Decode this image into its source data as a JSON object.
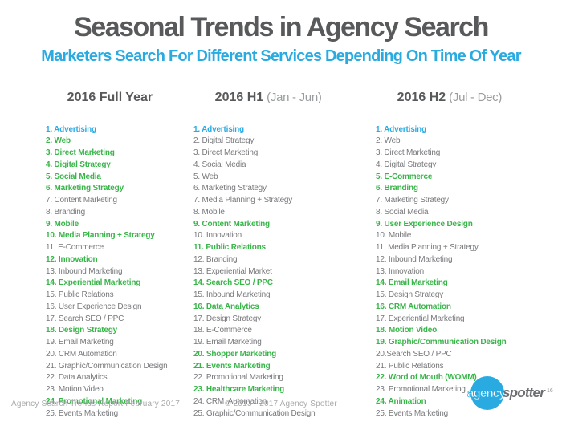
{
  "title": "Seasonal Trends in Agency Search",
  "subtitle": "Marketers Search For Different Services Depending On Time Of Year",
  "colors": {
    "title_gray": "#58595B",
    "accent_blue": "#29ABE2",
    "accent_green": "#39B54A",
    "item_gray": "#77787B",
    "muted_gray": "#A7A9AC"
  },
  "columns": [
    {
      "header": "2016 Full Year",
      "header_sub": "",
      "items": [
        {
          "text": "1. Advertising",
          "color": "blue"
        },
        {
          "text": "2. Web",
          "color": "green"
        },
        {
          "text": "3. Direct Marketing",
          "color": "green"
        },
        {
          "text": "4. Digital Strategy",
          "color": "green"
        },
        {
          "text": "5. Social Media",
          "color": "green"
        },
        {
          "text": "6. Marketing Strategy",
          "color": "green"
        },
        {
          "text": "7. Content Marketing",
          "color": "gray"
        },
        {
          "text": "8. Branding",
          "color": "gray"
        },
        {
          "text": "9. Mobile",
          "color": "green"
        },
        {
          "text": "10. Media Planning + Strategy",
          "color": "green"
        },
        {
          "text": "11. E-Commerce",
          "color": "gray"
        },
        {
          "text": "12. Innovation",
          "color": "green"
        },
        {
          "text": "13. Inbound Marketing",
          "color": "gray"
        },
        {
          "text": "14. Experiential Marketing",
          "color": "green"
        },
        {
          "text": "15. Public Relations",
          "color": "gray"
        },
        {
          "text": "16. User Experience Design",
          "color": "gray"
        },
        {
          "text": "17. Search SEO / PPC",
          "color": "gray"
        },
        {
          "text": "18. Design Strategy",
          "color": "green"
        },
        {
          "text": "19. Email Marketing",
          "color": "gray"
        },
        {
          "text": "20. CRM Automation",
          "color": "gray"
        },
        {
          "text": "21. Graphic/Communication Design",
          "color": "gray"
        },
        {
          "text": "22. Data Analytics",
          "color": "gray"
        },
        {
          "text": "23. Motion Video",
          "color": "gray"
        },
        {
          "text": "24. Promotional Marketing",
          "color": "green"
        },
        {
          "text": "25. Events Marketing",
          "color": "gray"
        }
      ]
    },
    {
      "header": "2016 H1",
      "header_sub": "(Jan - Jun)",
      "items": [
        {
          "text": "1. Advertising",
          "color": "blue"
        },
        {
          "text": "2. Digital Strategy",
          "color": "gray"
        },
        {
          "text": "3. Direct Marketing",
          "color": "gray"
        },
        {
          "text": "4. Social Media",
          "color": "gray"
        },
        {
          "text": "5. Web",
          "color": "gray"
        },
        {
          "text": "6. Marketing Strategy",
          "color": "gray"
        },
        {
          "text": "7. Media Planning + Strategy",
          "color": "gray"
        },
        {
          "text": "8. Mobile",
          "color": "gray"
        },
        {
          "text": "9. Content Marketing",
          "color": "green"
        },
        {
          "text": "10. Innovation",
          "color": "gray"
        },
        {
          "text": "11. Public Relations",
          "color": "green"
        },
        {
          "text": "12. Branding",
          "color": "gray"
        },
        {
          "text": "13. Experiential Market",
          "color": "gray"
        },
        {
          "text": "14. Search SEO / PPC",
          "color": "green"
        },
        {
          "text": "15. Inbound Marketing",
          "color": "gray"
        },
        {
          "text": "16. Data Analytics",
          "color": "green"
        },
        {
          "text": "17. Design Strategy",
          "color": "gray"
        },
        {
          "text": "18. E-Commerce",
          "color": "gray"
        },
        {
          "text": "19. Email Marketing",
          "color": "gray"
        },
        {
          "text": "20. Shopper Marketing",
          "color": "green"
        },
        {
          "text": "21. Events Marketing",
          "color": "green"
        },
        {
          "text": "22. Promotional Marketing",
          "color": "gray"
        },
        {
          "text": "23. Healthcare Marketing",
          "color": "green"
        },
        {
          "text": "24. CRM  Automation",
          "color": "gray"
        },
        {
          "text": "25. Graphic/Communication Design",
          "color": "gray"
        }
      ]
    },
    {
      "header": "2016 H2",
      "header_sub": "(Jul - Dec)",
      "items": [
        {
          "text": "1. Advertising",
          "color": "blue"
        },
        {
          "text": "2. Web",
          "color": "gray"
        },
        {
          "text": "3. Direct Marketing",
          "color": "gray"
        },
        {
          "text": "4. Digital Strategy",
          "color": "gray"
        },
        {
          "text": "5. E-Commerce",
          "color": "green"
        },
        {
          "text": "6. Branding",
          "color": "green"
        },
        {
          "text": "7. Marketing Strategy",
          "color": "gray"
        },
        {
          "text": "8. Social Media",
          "color": "gray"
        },
        {
          "text": "9. User Experience Design",
          "color": "green"
        },
        {
          "text": "10. Mobile",
          "color": "gray"
        },
        {
          "text": "11. Media Planning + Strategy",
          "color": "gray"
        },
        {
          "text": "12. Inbound Marketing",
          "color": "gray"
        },
        {
          "text": "13. Innovation",
          "color": "gray"
        },
        {
          "text": "14. Email Marketing",
          "color": "green"
        },
        {
          "text": "15. Design Strategy",
          "color": "gray"
        },
        {
          "text": "16. CRM Automation",
          "color": "green"
        },
        {
          "text": "17. Experiential Marketing",
          "color": "gray"
        },
        {
          "text": "18. Motion Video",
          "color": "green"
        },
        {
          "text": "19. Graphic/Communication Design",
          "color": "green"
        },
        {
          "text": "20.Search SEO / PPC",
          "color": "gray"
        },
        {
          "text": "21. Public Relations",
          "color": "gray"
        },
        {
          "text": "22. Word of Mouth (WOMM)",
          "color": "green"
        },
        {
          "text": "23. Promotional Marketing",
          "color": "gray"
        },
        {
          "text": "24. Animation",
          "color": "green"
        },
        {
          "text": "25. Events Marketing",
          "color": "gray"
        }
      ]
    }
  ],
  "footer": {
    "left": "Agency Search Trends Report February 2017",
    "center": "© 2013 - 2017 Agency Spotter",
    "page_number": "16"
  },
  "logo": {
    "part1": "agency",
    "part2": "spotter"
  }
}
